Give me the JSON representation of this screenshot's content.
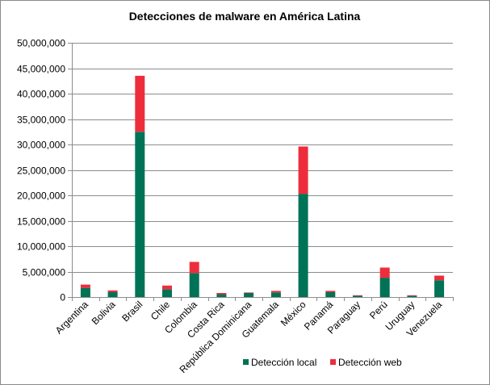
{
  "chart_data": {
    "type": "bar",
    "stacked": true,
    "title": "Detecciones de malware en América Latina",
    "xlabel": "",
    "ylabel": "",
    "ylim": [
      0,
      50000000
    ],
    "y_ticks": [
      "0",
      "5,000,000",
      "10,000,000",
      "15,000,000",
      "20,000,000",
      "25,000,000",
      "30,000,000",
      "35,000,000",
      "40,000,000",
      "45,000,000",
      "50,000,000"
    ],
    "y_tick_values": [
      0,
      5000000,
      10000000,
      15000000,
      20000000,
      25000000,
      30000000,
      35000000,
      40000000,
      45000000,
      50000000
    ],
    "grid": true,
    "legend_position": "bottom",
    "categories": [
      "Argentina",
      "Bolivia",
      "Brasil",
      "Chile",
      "Colombia",
      "Costa Rica",
      "República Dominicana",
      "Guatemala",
      "México",
      "Panamá",
      "Paraguay",
      "Perú",
      "Uruguay",
      "Venezuela"
    ],
    "series": [
      {
        "name": "Detección local",
        "color": "#007356",
        "values": [
          1800000,
          950000,
          32500000,
          1500000,
          4700000,
          550000,
          800000,
          900000,
          20300000,
          950000,
          250000,
          3800000,
          250000,
          3300000
        ]
      },
      {
        "name": "Detección web",
        "color": "#ee2d3c",
        "values": [
          650000,
          350000,
          11000000,
          750000,
          2200000,
          250000,
          100000,
          300000,
          9300000,
          250000,
          100000,
          2000000,
          100000,
          900000
        ]
      }
    ]
  }
}
